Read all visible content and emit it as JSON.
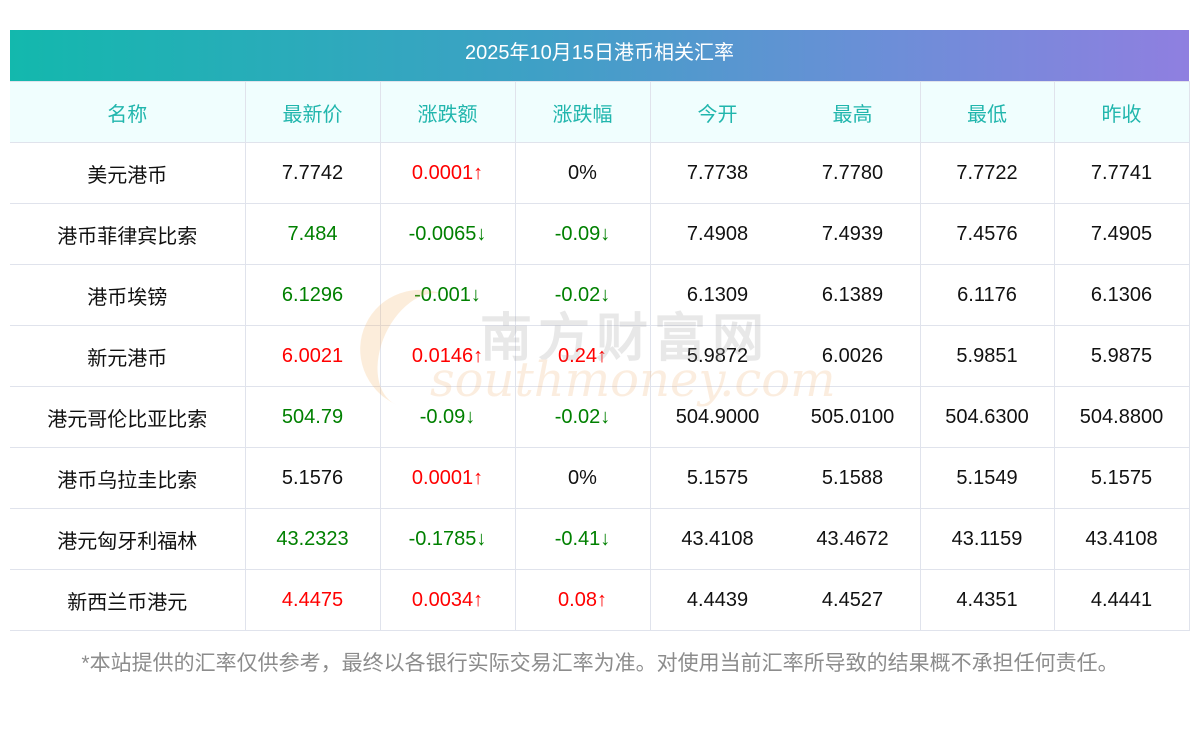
{
  "title": "2025年10月15日港币相关汇率",
  "colors": {
    "up": "#ff0000",
    "down": "#008000",
    "header_text": "#21b6ad"
  },
  "columns": [
    "名称",
    "最新价",
    "涨跌额",
    "涨跌幅",
    "今开",
    "最高",
    "最低",
    "昨收"
  ],
  "rows": [
    {
      "name": "美元港币",
      "price": "7.7742",
      "price_trend": "",
      "change": "0.0001↑",
      "change_trend": "up",
      "pct": "0%",
      "pct_trend": "",
      "open": "7.7738",
      "high": "7.7780",
      "low": "7.7722",
      "prev": "7.7741"
    },
    {
      "name": "港币菲律宾比索",
      "price": "7.484",
      "price_trend": "down",
      "change": "-0.0065↓",
      "change_trend": "down",
      "pct": "-0.09↓",
      "pct_trend": "down",
      "open": "7.4908",
      "high": "7.4939",
      "low": "7.4576",
      "prev": "7.4905"
    },
    {
      "name": "港币埃镑",
      "price": "6.1296",
      "price_trend": "down",
      "change": "-0.001↓",
      "change_trend": "down",
      "pct": "-0.02↓",
      "pct_trend": "down",
      "open": "6.1309",
      "high": "6.1389",
      "low": "6.1176",
      "prev": "6.1306"
    },
    {
      "name": "新元港币",
      "price": "6.0021",
      "price_trend": "up",
      "change": "0.0146↑",
      "change_trend": "up",
      "pct": "0.24↑",
      "pct_trend": "up",
      "open": "5.9872",
      "high": "6.0026",
      "low": "5.9851",
      "prev": "5.9875"
    },
    {
      "name": "港元哥伦比亚比索",
      "price": "504.79",
      "price_trend": "down",
      "change": "-0.09↓",
      "change_trend": "down",
      "pct": "-0.02↓",
      "pct_trend": "down",
      "open": "504.9000",
      "high": "505.0100",
      "low": "504.6300",
      "prev": "504.8800"
    },
    {
      "name": "港币乌拉圭比索",
      "price": "5.1576",
      "price_trend": "",
      "change": "0.0001↑",
      "change_trend": "up",
      "pct": "0%",
      "pct_trend": "",
      "open": "5.1575",
      "high": "5.1588",
      "low": "5.1549",
      "prev": "5.1575"
    },
    {
      "name": "港元匈牙利福林",
      "price": "43.2323",
      "price_trend": "down",
      "change": "-0.1785↓",
      "change_trend": "down",
      "pct": "-0.41↓",
      "pct_trend": "down",
      "open": "43.4108",
      "high": "43.4672",
      "low": "43.1159",
      "prev": "43.4108"
    },
    {
      "name": "新西兰币港元",
      "price": "4.4475",
      "price_trend": "up",
      "change": "0.0034↑",
      "change_trend": "up",
      "pct": "0.08↑",
      "pct_trend": "up",
      "open": "4.4439",
      "high": "4.4527",
      "low": "4.4351",
      "prev": "4.4441"
    }
  ],
  "watermark": {
    "cn": "南方财富网",
    "en": "southmoney.com"
  },
  "footnote": "*本站提供的汇率仅供参考，最终以各银行实际交易汇率为准。对使用当前汇率所导致的结果概不承担任何责任。"
}
